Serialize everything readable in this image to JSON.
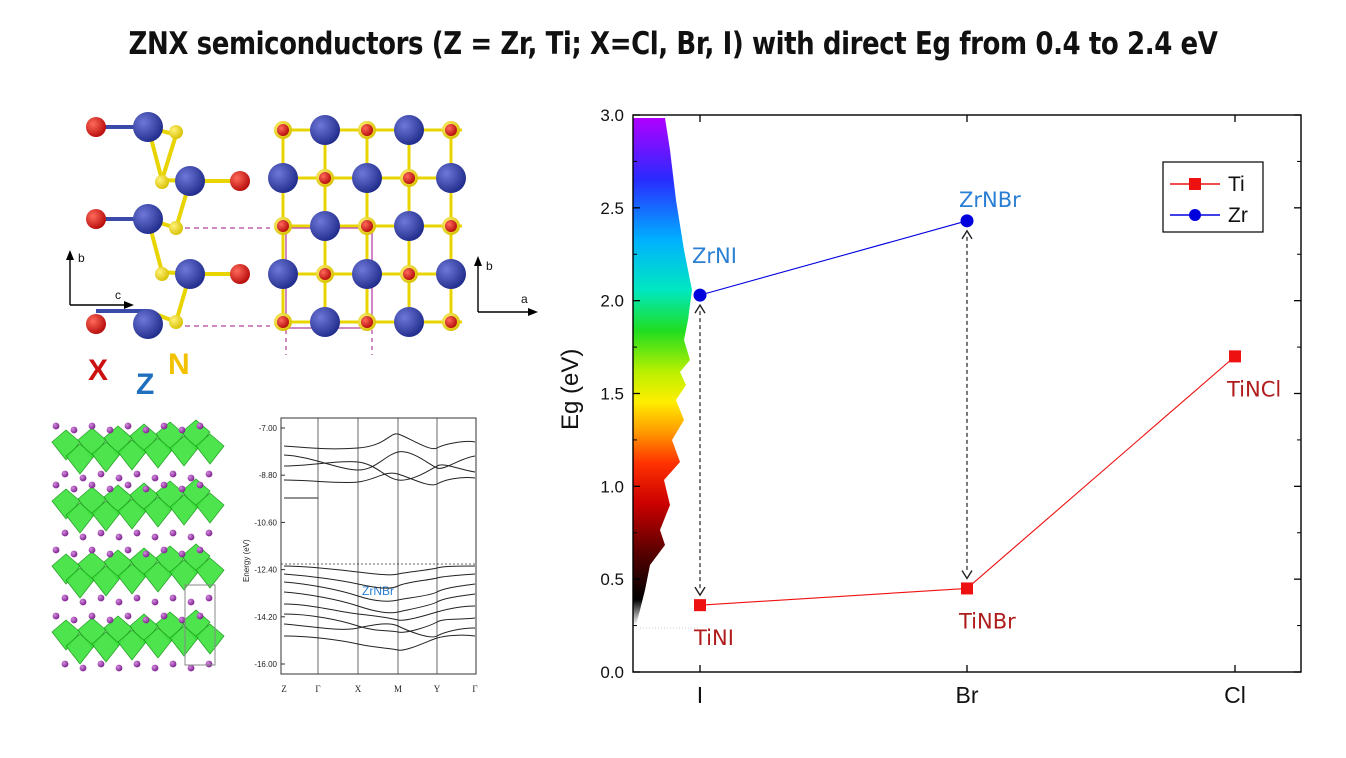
{
  "title": "ZNX semiconductors (Z = Zr, Ti; X=Cl, Br, I) with direct Eg from 0.4 to 2.4 eV",
  "structure_legend": {
    "x": "X",
    "z": "Z",
    "n": "N",
    "color_x": "#cc1111",
    "color_z": "#1f6fbf",
    "color_n": "#f2c200"
  },
  "structure_axes": {
    "b1": "b",
    "c": "c",
    "b2": "b",
    "a": "a"
  },
  "band_structure": {
    "ylabel": "Energy (eV)",
    "yticks": [
      "-7.00",
      "-8.80",
      "-10.60",
      "-12.40",
      "-14.20",
      "-16.00"
    ],
    "kpoints": [
      "Z",
      "Γ",
      "X",
      "M",
      "Y",
      "Γ"
    ],
    "label": "ZrNBr"
  },
  "chart_data": {
    "type": "line",
    "categories": [
      "I",
      "Br",
      "Cl"
    ],
    "ylabel": "Eg (eV)",
    "ylim": [
      0.0,
      3.0
    ],
    "yticks": [
      "0.0",
      "0.5",
      "1.0",
      "1.5",
      "2.0",
      "2.5",
      "3.0"
    ],
    "legend_position": "top-right",
    "series": [
      {
        "name": "Ti",
        "color": "#ee1111",
        "marker": "square",
        "values": [
          0.36,
          0.45,
          1.7
        ],
        "labels": [
          "TiNI",
          "TiNBr",
          "TiNCl"
        ]
      },
      {
        "name": "Zr",
        "color": "#0000dd",
        "marker": "circle",
        "values": [
          2.03,
          2.43,
          null
        ],
        "labels": [
          "ZrNI",
          "ZrNBr",
          ""
        ]
      }
    ],
    "label_colors": {
      "Ti": "#b01c1c",
      "Zr": "#2a7fd4"
    }
  }
}
